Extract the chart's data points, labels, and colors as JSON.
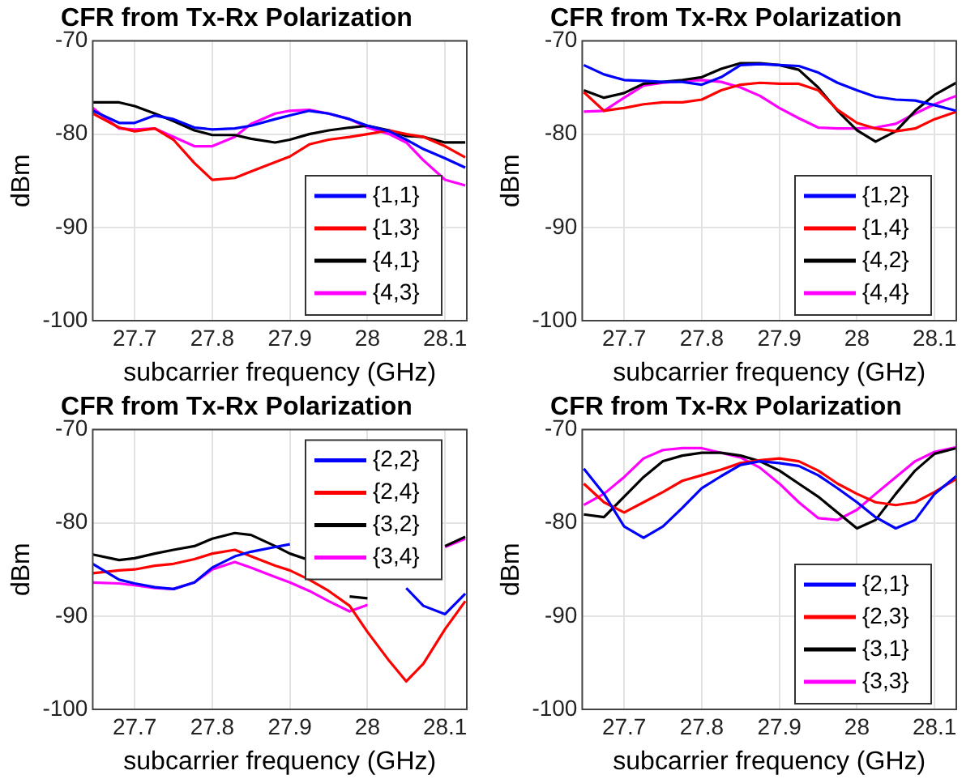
{
  "chart_data": [
    {
      "type": "line",
      "title": "CFR from Tx-Rx Polarization",
      "xlabel": "subcarrier frequency (GHz)",
      "ylabel": "dBm",
      "xlim": [
        27.646,
        28.128
      ],
      "ylim": [
        -100,
        -70
      ],
      "xticks": [
        27.7,
        27.8,
        27.9,
        28,
        28.1
      ],
      "yticks": [
        -100,
        -90,
        -80,
        -70
      ],
      "grid": true,
      "legend": "bottom right",
      "marker": "none",
      "line_style": "solid",
      "x": [
        27.646,
        27.68,
        27.7,
        27.726,
        27.75,
        27.777,
        27.8,
        27.829,
        27.85,
        27.881,
        27.9,
        27.925,
        27.95,
        27.977,
        28.0,
        28.028,
        28.05,
        28.072,
        28.1,
        28.126
      ],
      "series": [
        {
          "name": "{1,1}",
          "color": "#0000ff",
          "values": [
            -77.5,
            -78.8,
            -78.8,
            -78,
            -78.4,
            -79.3,
            -79.5,
            -79.4,
            -79.1,
            -78.4,
            -78,
            -77.5,
            -77.8,
            -78.4,
            -79.1,
            -79.7,
            -80.6,
            -81.6,
            -82.6,
            -83.6
          ]
        },
        {
          "name": "{1,3}",
          "color": "#ff0000",
          "values": [
            -77.8,
            -79.3,
            -79.7,
            -79.4,
            -80.6,
            -83.1,
            -84.9,
            -84.7,
            -84,
            -83,
            -82.4,
            -81.1,
            -80.6,
            -80.3,
            -80,
            -79.6,
            -80,
            -80.3,
            -81.3,
            -82.5
          ]
        },
        {
          "name": "{4,1}",
          "color": "#000000",
          "values": [
            -76.6,
            -76.6,
            -77,
            -77.8,
            -78.6,
            -79.6,
            -80.1,
            -80.1,
            -80.5,
            -80.9,
            -80.6,
            -80,
            -79.6,
            -79.3,
            -79.1,
            -79.6,
            -80.2,
            -80.3,
            -80.9,
            -80.9
          ]
        },
        {
          "name": "{4,3}",
          "color": "#ff00ff",
          "values": [
            -77.2,
            -79.4,
            -79.5,
            -79.4,
            -80.3,
            -81.3,
            -81.3,
            -80.3,
            -78.9,
            -77.8,
            -77.5,
            -77.4,
            -77.8,
            -78.4,
            -79.3,
            -80,
            -80.9,
            -82.8,
            -84.9,
            -85.5
          ]
        }
      ]
    },
    {
      "type": "line",
      "title": "CFR from Tx-Rx Polarization",
      "xlabel": "subcarrier frequency (GHz)",
      "ylabel": "dBm",
      "xlim": [
        27.646,
        28.128
      ],
      "ylim": [
        -100,
        -70
      ],
      "xticks": [
        27.7,
        27.8,
        27.9,
        28,
        28.1
      ],
      "yticks": [
        -100,
        -90,
        -80,
        -70
      ],
      "grid": true,
      "legend": "bottom right",
      "marker": "none",
      "line_style": "solid",
      "x": [
        27.648,
        27.674,
        27.7,
        27.725,
        27.75,
        27.775,
        27.8,
        27.825,
        27.85,
        27.875,
        27.9,
        27.925,
        27.95,
        27.975,
        28.0,
        28.024,
        28.05,
        28.075,
        28.1,
        28.128
      ],
      "series": [
        {
          "name": "{1,2}",
          "color": "#0000ff",
          "values": [
            -72.6,
            -73.6,
            -74.2,
            -74.3,
            -74.4,
            -74.4,
            -74.7,
            -73.9,
            -72.6,
            -72.5,
            -72.6,
            -72.7,
            -73.4,
            -74.5,
            -75.3,
            -76,
            -76.3,
            -76.4,
            -76.9,
            -77.5
          ]
        },
        {
          "name": "{1,4}",
          "color": "#ff0000",
          "values": [
            -75.5,
            -77.5,
            -77.2,
            -76.8,
            -76.6,
            -76.6,
            -76.3,
            -75.3,
            -74.7,
            -74.5,
            -74.6,
            -74.6,
            -75.3,
            -77.4,
            -78.8,
            -79.4,
            -79.7,
            -79.4,
            -78.4,
            -77.6
          ]
        },
        {
          "name": "{4,2}",
          "color": "#000000",
          "values": [
            -75.3,
            -76.1,
            -75.6,
            -74.6,
            -74.4,
            -74.2,
            -73.9,
            -73,
            -72.4,
            -72.4,
            -72.6,
            -73.1,
            -75,
            -77.5,
            -79.6,
            -80.8,
            -79.7,
            -77.5,
            -75.8,
            -74.5
          ]
        },
        {
          "name": "{4,4}",
          "color": "#ff00ff",
          "values": [
            -77.6,
            -77.5,
            -76.1,
            -74.8,
            -74.5,
            -74.3,
            -74.2,
            -74.4,
            -75,
            -75.9,
            -77.2,
            -78.3,
            -79.3,
            -79.4,
            -79.4,
            -79.3,
            -78.9,
            -77.8,
            -76.8,
            -75.9
          ]
        }
      ]
    },
    {
      "type": "line",
      "title": "CFR from Tx-Rx Polarization",
      "xlabel": "subcarrier frequency (GHz)",
      "ylabel": "dBm",
      "xlim": [
        27.646,
        28.128
      ],
      "ylim": [
        -100,
        -70
      ],
      "xticks": [
        27.7,
        27.8,
        27.9,
        28,
        28.1
      ],
      "yticks": [
        -100,
        -90,
        -80,
        -70
      ],
      "grid": true,
      "legend": "top right",
      "marker": "none",
      "line_style": "solid",
      "x": [
        27.646,
        27.68,
        27.7,
        27.726,
        27.75,
        27.777,
        27.8,
        27.829,
        27.85,
        27.881,
        27.9,
        27.925,
        27.95,
        27.977,
        28.0,
        28.028,
        28.05,
        28.072,
        28.1,
        28.126
      ],
      "series": [
        {
          "name": "{2,2}",
          "color": "#0000ff",
          "values": [
            -84.4,
            -86.1,
            -86.5,
            -86.9,
            -87.1,
            -86.4,
            -84.8,
            -83.6,
            -83.1,
            -82.6,
            -82.3,
            null,
            null,
            null,
            null,
            null,
            -87,
            -88.9,
            -89.8,
            -87.6
          ]
        },
        {
          "name": "{2,4}",
          "color": "#ff0000",
          "values": [
            -85.4,
            -85.1,
            -85,
            -84.6,
            -84.4,
            -83.9,
            -83.3,
            -82.9,
            -83.6,
            -84.6,
            -85.1,
            -86.1,
            -87.3,
            -88.9,
            -91.7,
            -94.8,
            -97,
            -95.1,
            -91.4,
            -88.4
          ]
        },
        {
          "name": "{3,2}",
          "color": "#000000",
          "values": [
            -83.4,
            -84,
            -83.8,
            -83.3,
            -82.9,
            -82.5,
            -81.7,
            -81.1,
            -81.3,
            -82.5,
            -83.3,
            -84,
            null,
            -87.9,
            -88.1,
            null,
            null,
            null,
            -82.5,
            -81.5
          ]
        },
        {
          "name": "{3,4}",
          "color": "#ff00ff",
          "values": [
            -86.4,
            -86.5,
            -86.7,
            -87,
            -87.1,
            -86.4,
            -85,
            -84.2,
            -84.8,
            -85.8,
            -86.4,
            -87.3,
            -88.4,
            -89.5,
            -88.8,
            null,
            null,
            null,
            -82.6,
            -81.7
          ]
        }
      ]
    },
    {
      "type": "line",
      "title": "CFR from Tx-Rx Polarization",
      "xlabel": "subcarrier frequency (GHz)",
      "ylabel": "dBm",
      "xlim": [
        27.646,
        28.128
      ],
      "ylim": [
        -100,
        -70
      ],
      "xticks": [
        27.7,
        27.8,
        27.9,
        28,
        28.1
      ],
      "yticks": [
        -100,
        -90,
        -80,
        -70
      ],
      "grid": true,
      "legend": "bottom right",
      "marker": "none",
      "line_style": "solid",
      "x": [
        27.648,
        27.674,
        27.7,
        27.725,
        27.75,
        27.775,
        27.8,
        27.825,
        27.85,
        27.875,
        27.9,
        27.925,
        27.95,
        27.975,
        28.0,
        28.024,
        28.05,
        28.075,
        28.1,
        28.128
      ],
      "series": [
        {
          "name": "{2,1}",
          "color": "#0000ff",
          "values": [
            -74.2,
            -76.9,
            -80.4,
            -81.6,
            -80.4,
            -78.4,
            -76.3,
            -75,
            -73.8,
            -73.4,
            -73.6,
            -73.9,
            -74.9,
            -76.3,
            -77.8,
            -79.4,
            -80.6,
            -79.7,
            -76.9,
            -75
          ]
        },
        {
          "name": "{2,3}",
          "color": "#ff0000",
          "values": [
            -75.8,
            -77.8,
            -78.9,
            -77.8,
            -76.7,
            -75.5,
            -74.9,
            -74.3,
            -73.6,
            -73.3,
            -73.1,
            -73.4,
            -74.4,
            -75.8,
            -76.9,
            -77.8,
            -78.1,
            -77.8,
            -76.7,
            -75.3
          ]
        },
        {
          "name": "{3,1}",
          "color": "#000000",
          "values": [
            -79.1,
            -79.4,
            -77.2,
            -75.1,
            -73.4,
            -72.8,
            -72.5,
            -72.5,
            -72.8,
            -73.4,
            -74.4,
            -75.8,
            -77.2,
            -78.9,
            -80.6,
            -79.7,
            -76.9,
            -74.4,
            -72.6,
            -72
          ]
        },
        {
          "name": "{3,3}",
          "color": "#ff00ff",
          "values": [
            -78.1,
            -76.9,
            -75.1,
            -73.1,
            -72.2,
            -72,
            -72,
            -72.5,
            -73,
            -74.1,
            -75.8,
            -77.8,
            -79.5,
            -79.7,
            -78.6,
            -76.9,
            -75.1,
            -73.4,
            -72.4,
            -71.9
          ]
        }
      ]
    }
  ]
}
